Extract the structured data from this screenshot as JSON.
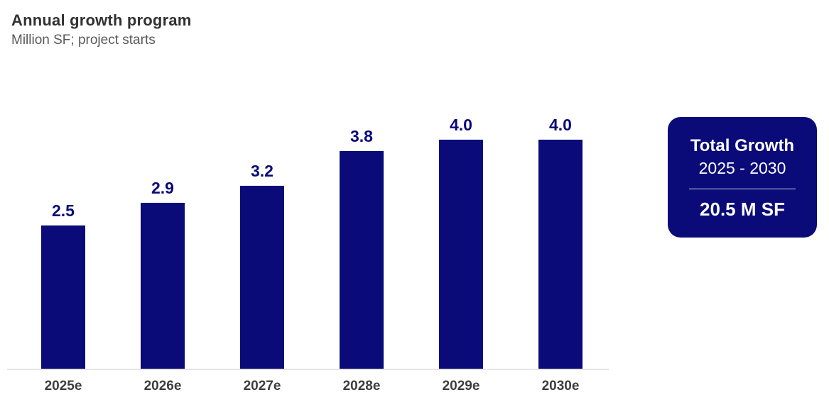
{
  "header": {
    "title": "Annual growth program",
    "subtitle": "Million SF; project starts"
  },
  "chart_data": {
    "type": "bar",
    "categories": [
      "2025e",
      "2026e",
      "2027e",
      "2028e",
      "2029e",
      "2030e"
    ],
    "values": [
      2.5,
      2.9,
      3.2,
      3.8,
      4.0,
      4.0
    ],
    "value_labels": [
      "2.5",
      "2.9",
      "3.2",
      "3.8",
      "4.0",
      "4.0"
    ],
    "title": "Annual growth program",
    "xlabel": "",
    "ylabel": "Million SF; project starts",
    "ylim": [
      0,
      4.4
    ],
    "grid": false,
    "legend_position": "none",
    "bar_color": "#0A0A78",
    "value_label_color": "#0A0A78",
    "tick_label_color": "#3d3d3d",
    "axis_line_color": "#e4e4e4"
  },
  "summary_card": {
    "title": "Total Growth",
    "period": "2025 - 2030",
    "value": "20.5 M SF",
    "bg_color": "#0A0A78",
    "text_color": "#ffffff"
  },
  "colors": {
    "background": "#ffffff",
    "title_text": "#313131",
    "subtitle_text": "#585858"
  }
}
